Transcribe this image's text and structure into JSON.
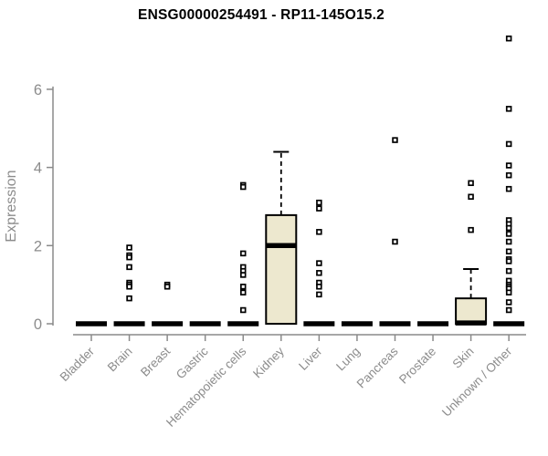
{
  "chart_data": {
    "type": "boxplot",
    "title": "ENSG00000254491 - RP11-145O15.2",
    "ylabel": "Expression",
    "yticks": [
      0,
      2,
      4,
      6
    ],
    "ylim": [
      0,
      7.45
    ],
    "grid": false,
    "legend": "none",
    "box_fill_color": "#EDE8CF",
    "box_border_color": "#000000",
    "axis_color": "#8a8a8a",
    "text_color": "#8c8c8c",
    "categories": [
      "Bladder",
      "Brain",
      "Breast",
      "Gastric",
      "Hematopoietic cells",
      "Kidney",
      "Liver",
      "Lung",
      "Pancreas",
      "Prostate",
      "Skin",
      "Unknown / Other"
    ],
    "series": [
      {
        "name": "Bladder",
        "q1": 0,
        "median": 0,
        "q3": 0,
        "whisker_low": 0,
        "whisker_high": 0,
        "outliers": []
      },
      {
        "name": "Brain",
        "q1": 0,
        "median": 0,
        "q3": 0,
        "whisker_low": 0,
        "whisker_high": 0,
        "outliers": [
          1.95,
          1.75,
          1.7,
          1.45,
          1.05,
          1.0,
          0.95,
          0.65
        ]
      },
      {
        "name": "Breast",
        "q1": 0,
        "median": 0,
        "q3": 0,
        "whisker_low": 0,
        "whisker_high": 0,
        "outliers": [
          1.0,
          0.95
        ]
      },
      {
        "name": "Gastric",
        "q1": 0,
        "median": 0,
        "q3": 0,
        "whisker_low": 0,
        "whisker_high": 0,
        "outliers": []
      },
      {
        "name": "Hematopoietic cells",
        "q1": 0,
        "median": 0,
        "q3": 0,
        "whisker_low": 0,
        "whisker_high": 0,
        "outliers": [
          3.55,
          3.5,
          1.8,
          1.45,
          1.35,
          1.25,
          0.95,
          0.8,
          0.35
        ]
      },
      {
        "name": "Kidney",
        "q1": 0,
        "median": 2.0,
        "q3": 2.78,
        "whisker_low": 0,
        "whisker_high": 4.4,
        "outliers": []
      },
      {
        "name": "Liver",
        "q1": 0,
        "median": 0,
        "q3": 0,
        "whisker_low": 0,
        "whisker_high": 0,
        "outliers": [
          3.1,
          2.95,
          2.35,
          1.55,
          1.3,
          1.05,
          0.95,
          0.75
        ]
      },
      {
        "name": "Lung",
        "q1": 0,
        "median": 0,
        "q3": 0,
        "whisker_low": 0,
        "whisker_high": 0,
        "outliers": []
      },
      {
        "name": "Pancreas",
        "q1": 0,
        "median": 0,
        "q3": 0,
        "whisker_low": 0,
        "whisker_high": 0,
        "outliers": [
          4.7,
          2.1
        ]
      },
      {
        "name": "Prostate",
        "q1": 0,
        "median": 0,
        "q3": 0,
        "whisker_low": 0,
        "whisker_high": 0,
        "outliers": []
      },
      {
        "name": "Skin",
        "q1": 0,
        "median": 0.02,
        "q3": 0.65,
        "whisker_low": 0,
        "whisker_high": 1.4,
        "outliers": [
          3.6,
          3.25,
          2.4
        ]
      },
      {
        "name": "Unknown / Other",
        "q1": 0,
        "median": 0,
        "q3": 0,
        "whisker_low": 0,
        "whisker_high": 0,
        "outliers": [
          7.3,
          5.5,
          4.6,
          4.05,
          3.8,
          3.45,
          2.65,
          2.55,
          2.45,
          2.3,
          2.1,
          1.85,
          1.65,
          1.6,
          1.35,
          1.1,
          1.0,
          0.95,
          0.9,
          0.8,
          0.55,
          0.35
        ]
      }
    ]
  }
}
